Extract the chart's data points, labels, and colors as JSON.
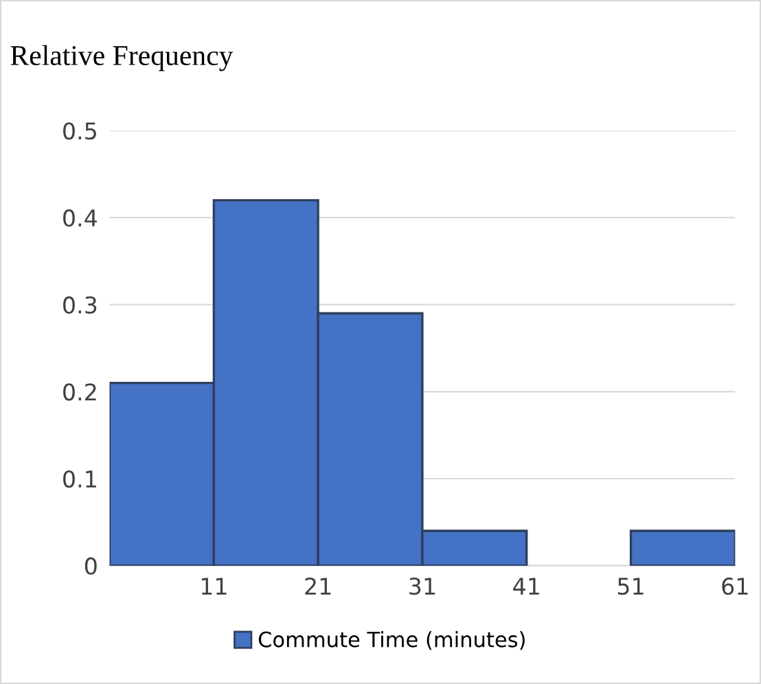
{
  "chart_data": {
    "type": "histogram",
    "title": "Relative Frequency",
    "bins": [
      1,
      11,
      21,
      31,
      41,
      51,
      61
    ],
    "series": [
      {
        "name": "Commute Time (minutes)",
        "color": "#4472c4",
        "values": [
          0.21,
          0.42,
          0.29,
          0.04,
          0,
          0.04
        ]
      }
    ],
    "xlim": [
      1,
      61
    ],
    "xticks": [
      11,
      21,
      31,
      41,
      51,
      61
    ],
    "ylim": [
      0,
      0.5
    ],
    "yticks": [
      0,
      0.1,
      0.2,
      0.3,
      0.4,
      0.5
    ],
    "grid": "y",
    "legend": "bottom"
  }
}
